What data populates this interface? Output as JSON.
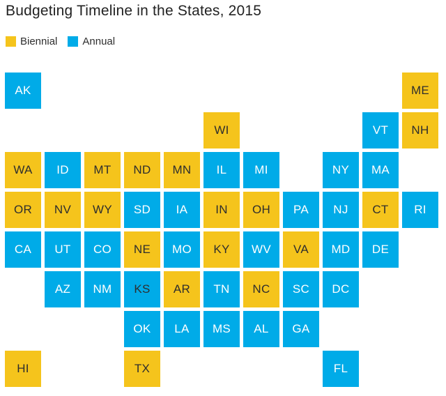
{
  "colors": {
    "background": "#FFFFFF",
    "title": "#222222",
    "tile_text_dark": "#2E2E2E",
    "tile_text_light": "#FFFFFF"
  },
  "chart_data": {
    "type": "heatmap",
    "subtype": "state-tile-grid-cartogram",
    "title": "Budgeting Timeline in the States, 2015",
    "legend_position": "top-left",
    "legend": [
      {
        "label": "Biennial",
        "color": "#F5C41C"
      },
      {
        "label": "Annual",
        "color": "#00ABE8"
      }
    ],
    "states": [
      {
        "abbr": "AK",
        "row": 0,
        "col": 0,
        "value": "annual"
      },
      {
        "abbr": "ME",
        "row": 0,
        "col": 10,
        "value": "biennial"
      },
      {
        "abbr": "WI",
        "row": 1,
        "col": 5,
        "value": "biennial"
      },
      {
        "abbr": "VT",
        "row": 1,
        "col": 9,
        "value": "annual"
      },
      {
        "abbr": "NH",
        "row": 1,
        "col": 10,
        "value": "biennial"
      },
      {
        "abbr": "WA",
        "row": 2,
        "col": 0,
        "value": "biennial"
      },
      {
        "abbr": "ID",
        "row": 2,
        "col": 1,
        "value": "annual"
      },
      {
        "abbr": "MT",
        "row": 2,
        "col": 2,
        "value": "biennial"
      },
      {
        "abbr": "ND",
        "row": 2,
        "col": 3,
        "value": "biennial"
      },
      {
        "abbr": "MN",
        "row": 2,
        "col": 4,
        "value": "biennial"
      },
      {
        "abbr": "IL",
        "row": 2,
        "col": 5,
        "value": "annual"
      },
      {
        "abbr": "MI",
        "row": 2,
        "col": 6,
        "value": "annual"
      },
      {
        "abbr": "NY",
        "row": 2,
        "col": 8,
        "value": "annual"
      },
      {
        "abbr": "MA",
        "row": 2,
        "col": 9,
        "value": "annual"
      },
      {
        "abbr": "OR",
        "row": 3,
        "col": 0,
        "value": "biennial"
      },
      {
        "abbr": "NV",
        "row": 3,
        "col": 1,
        "value": "biennial"
      },
      {
        "abbr": "WY",
        "row": 3,
        "col": 2,
        "value": "biennial"
      },
      {
        "abbr": "SD",
        "row": 3,
        "col": 3,
        "value": "annual"
      },
      {
        "abbr": "IA",
        "row": 3,
        "col": 4,
        "value": "annual"
      },
      {
        "abbr": "IN",
        "row": 3,
        "col": 5,
        "value": "biennial"
      },
      {
        "abbr": "OH",
        "row": 3,
        "col": 6,
        "value": "biennial"
      },
      {
        "abbr": "PA",
        "row": 3,
        "col": 7,
        "value": "annual"
      },
      {
        "abbr": "NJ",
        "row": 3,
        "col": 8,
        "value": "annual"
      },
      {
        "abbr": "CT",
        "row": 3,
        "col": 9,
        "value": "biennial"
      },
      {
        "abbr": "RI",
        "row": 3,
        "col": 10,
        "value": "annual"
      },
      {
        "abbr": "CA",
        "row": 4,
        "col": 0,
        "value": "annual"
      },
      {
        "abbr": "UT",
        "row": 4,
        "col": 1,
        "value": "annual"
      },
      {
        "abbr": "CO",
        "row": 4,
        "col": 2,
        "value": "annual"
      },
      {
        "abbr": "NE",
        "row": 4,
        "col": 3,
        "value": "biennial"
      },
      {
        "abbr": "MO",
        "row": 4,
        "col": 4,
        "value": "annual"
      },
      {
        "abbr": "KY",
        "row": 4,
        "col": 5,
        "value": "biennial"
      },
      {
        "abbr": "WV",
        "row": 4,
        "col": 6,
        "value": "annual"
      },
      {
        "abbr": "VA",
        "row": 4,
        "col": 7,
        "value": "biennial"
      },
      {
        "abbr": "MD",
        "row": 4,
        "col": 8,
        "value": "annual"
      },
      {
        "abbr": "DE",
        "row": 4,
        "col": 9,
        "value": "annual"
      },
      {
        "abbr": "AZ",
        "row": 5,
        "col": 1,
        "value": "annual"
      },
      {
        "abbr": "NM",
        "row": 5,
        "col": 2,
        "value": "annual"
      },
      {
        "abbr": "KS",
        "row": 5,
        "col": 3,
        "value": "annual",
        "label_color": "dark"
      },
      {
        "abbr": "AR",
        "row": 5,
        "col": 4,
        "value": "biennial"
      },
      {
        "abbr": "TN",
        "row": 5,
        "col": 5,
        "value": "annual"
      },
      {
        "abbr": "NC",
        "row": 5,
        "col": 6,
        "value": "biennial"
      },
      {
        "abbr": "SC",
        "row": 5,
        "col": 7,
        "value": "annual"
      },
      {
        "abbr": "DC",
        "row": 5,
        "col": 8,
        "value": "annual"
      },
      {
        "abbr": "OK",
        "row": 6,
        "col": 3,
        "value": "annual"
      },
      {
        "abbr": "LA",
        "row": 6,
        "col": 4,
        "value": "annual"
      },
      {
        "abbr": "MS",
        "row": 6,
        "col": 5,
        "value": "annual"
      },
      {
        "abbr": "AL",
        "row": 6,
        "col": 6,
        "value": "annual"
      },
      {
        "abbr": "GA",
        "row": 6,
        "col": 7,
        "value": "annual"
      },
      {
        "abbr": "HI",
        "row": 7,
        "col": 0,
        "value": "biennial"
      },
      {
        "abbr": "TX",
        "row": 7,
        "col": 3,
        "value": "biennial"
      },
      {
        "abbr": "FL",
        "row": 7,
        "col": 8,
        "value": "annual"
      }
    ]
  }
}
